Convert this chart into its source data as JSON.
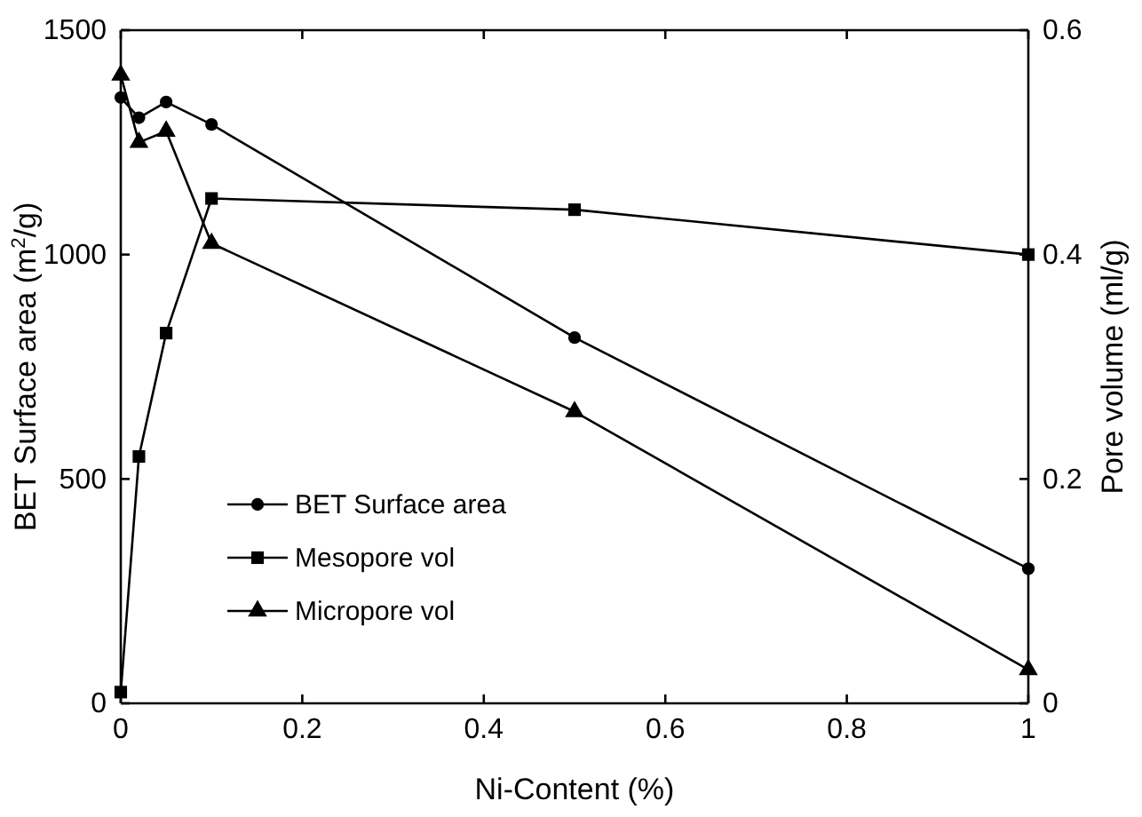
{
  "chart_data": {
    "type": "line",
    "xlabel": "Ni-Content (%)",
    "ylabel": "BET Surface area (m$^{2}$/g)",
    "y2label": "Pore volume (ml/g)",
    "x": [
      0,
      0.02,
      0.05,
      0.1,
      0.5,
      1
    ],
    "xlim": [
      0,
      1
    ],
    "xticks": [
      0,
      0.2,
      0.4,
      0.6,
      0.8,
      1
    ],
    "ylim": [
      0,
      1500
    ],
    "yticks": [
      0,
      500,
      1000,
      1500
    ],
    "y2lim": [
      0,
      0.6
    ],
    "y2ticks": [
      0,
      0.2,
      0.4,
      0.6
    ],
    "legend": "bottom left",
    "grid": false,
    "series": [
      {
        "name": "BET Surface area",
        "color": "#000000",
        "marker": "circle",
        "values": [
          1350,
          1305,
          1340,
          1290,
          815,
          300
        ]
      },
      {
        "name": "Mesopore vol",
        "color": "#000000",
        "marker": "square",
        "axis": "y2",
        "values": [
          0.01,
          0.22,
          0.33,
          0.45,
          0.44,
          0.4
        ]
      },
      {
        "name": "Micropore vol",
        "color": "#000000",
        "marker": "triangle",
        "axis": "y2",
        "values": [
          0.56,
          0.5,
          0.51,
          0.41,
          0.26,
          0.03
        ]
      }
    ]
  }
}
